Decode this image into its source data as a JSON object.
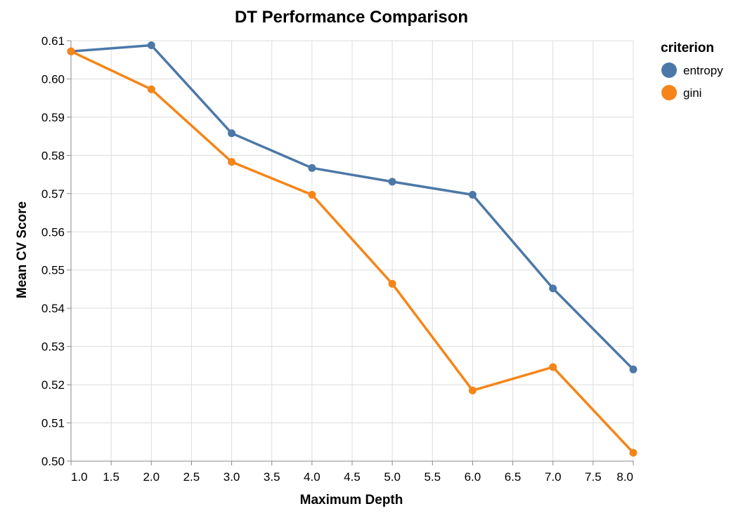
{
  "chart_data": {
    "type": "line",
    "title": "DT Performance Comparison",
    "xlabel": "Maximum Depth",
    "ylabel": "Mean CV Score",
    "x": [
      1,
      2,
      3,
      4,
      5,
      6,
      7,
      8
    ],
    "xlim": [
      1,
      8
    ],
    "ylim": [
      0.5,
      0.61
    ],
    "x_ticks": [
      "1.0",
      "1.5",
      "2.0",
      "2.5",
      "3.0",
      "3.5",
      "4.0",
      "4.5",
      "5.0",
      "5.5",
      "6.0",
      "6.5",
      "7.0",
      "7.5",
      "8.0"
    ],
    "y_ticks": [
      "0.50",
      "0.51",
      "0.52",
      "0.53",
      "0.54",
      "0.55",
      "0.56",
      "0.57",
      "0.58",
      "0.59",
      "0.60",
      "0.61"
    ],
    "grid": true,
    "legend": {
      "title": "criterion",
      "position": "top-right"
    },
    "series": [
      {
        "name": "entropy",
        "color": "#4c78a8",
        "values": [
          0.6072,
          0.6088,
          0.5858,
          0.5767,
          0.5731,
          0.5697,
          0.5452,
          0.524
        ]
      },
      {
        "name": "gini",
        "color": "#f58518",
        "values": [
          0.6072,
          0.5973,
          0.5783,
          0.5697,
          0.5464,
          0.5185,
          0.5246,
          0.5022
        ]
      }
    ]
  }
}
